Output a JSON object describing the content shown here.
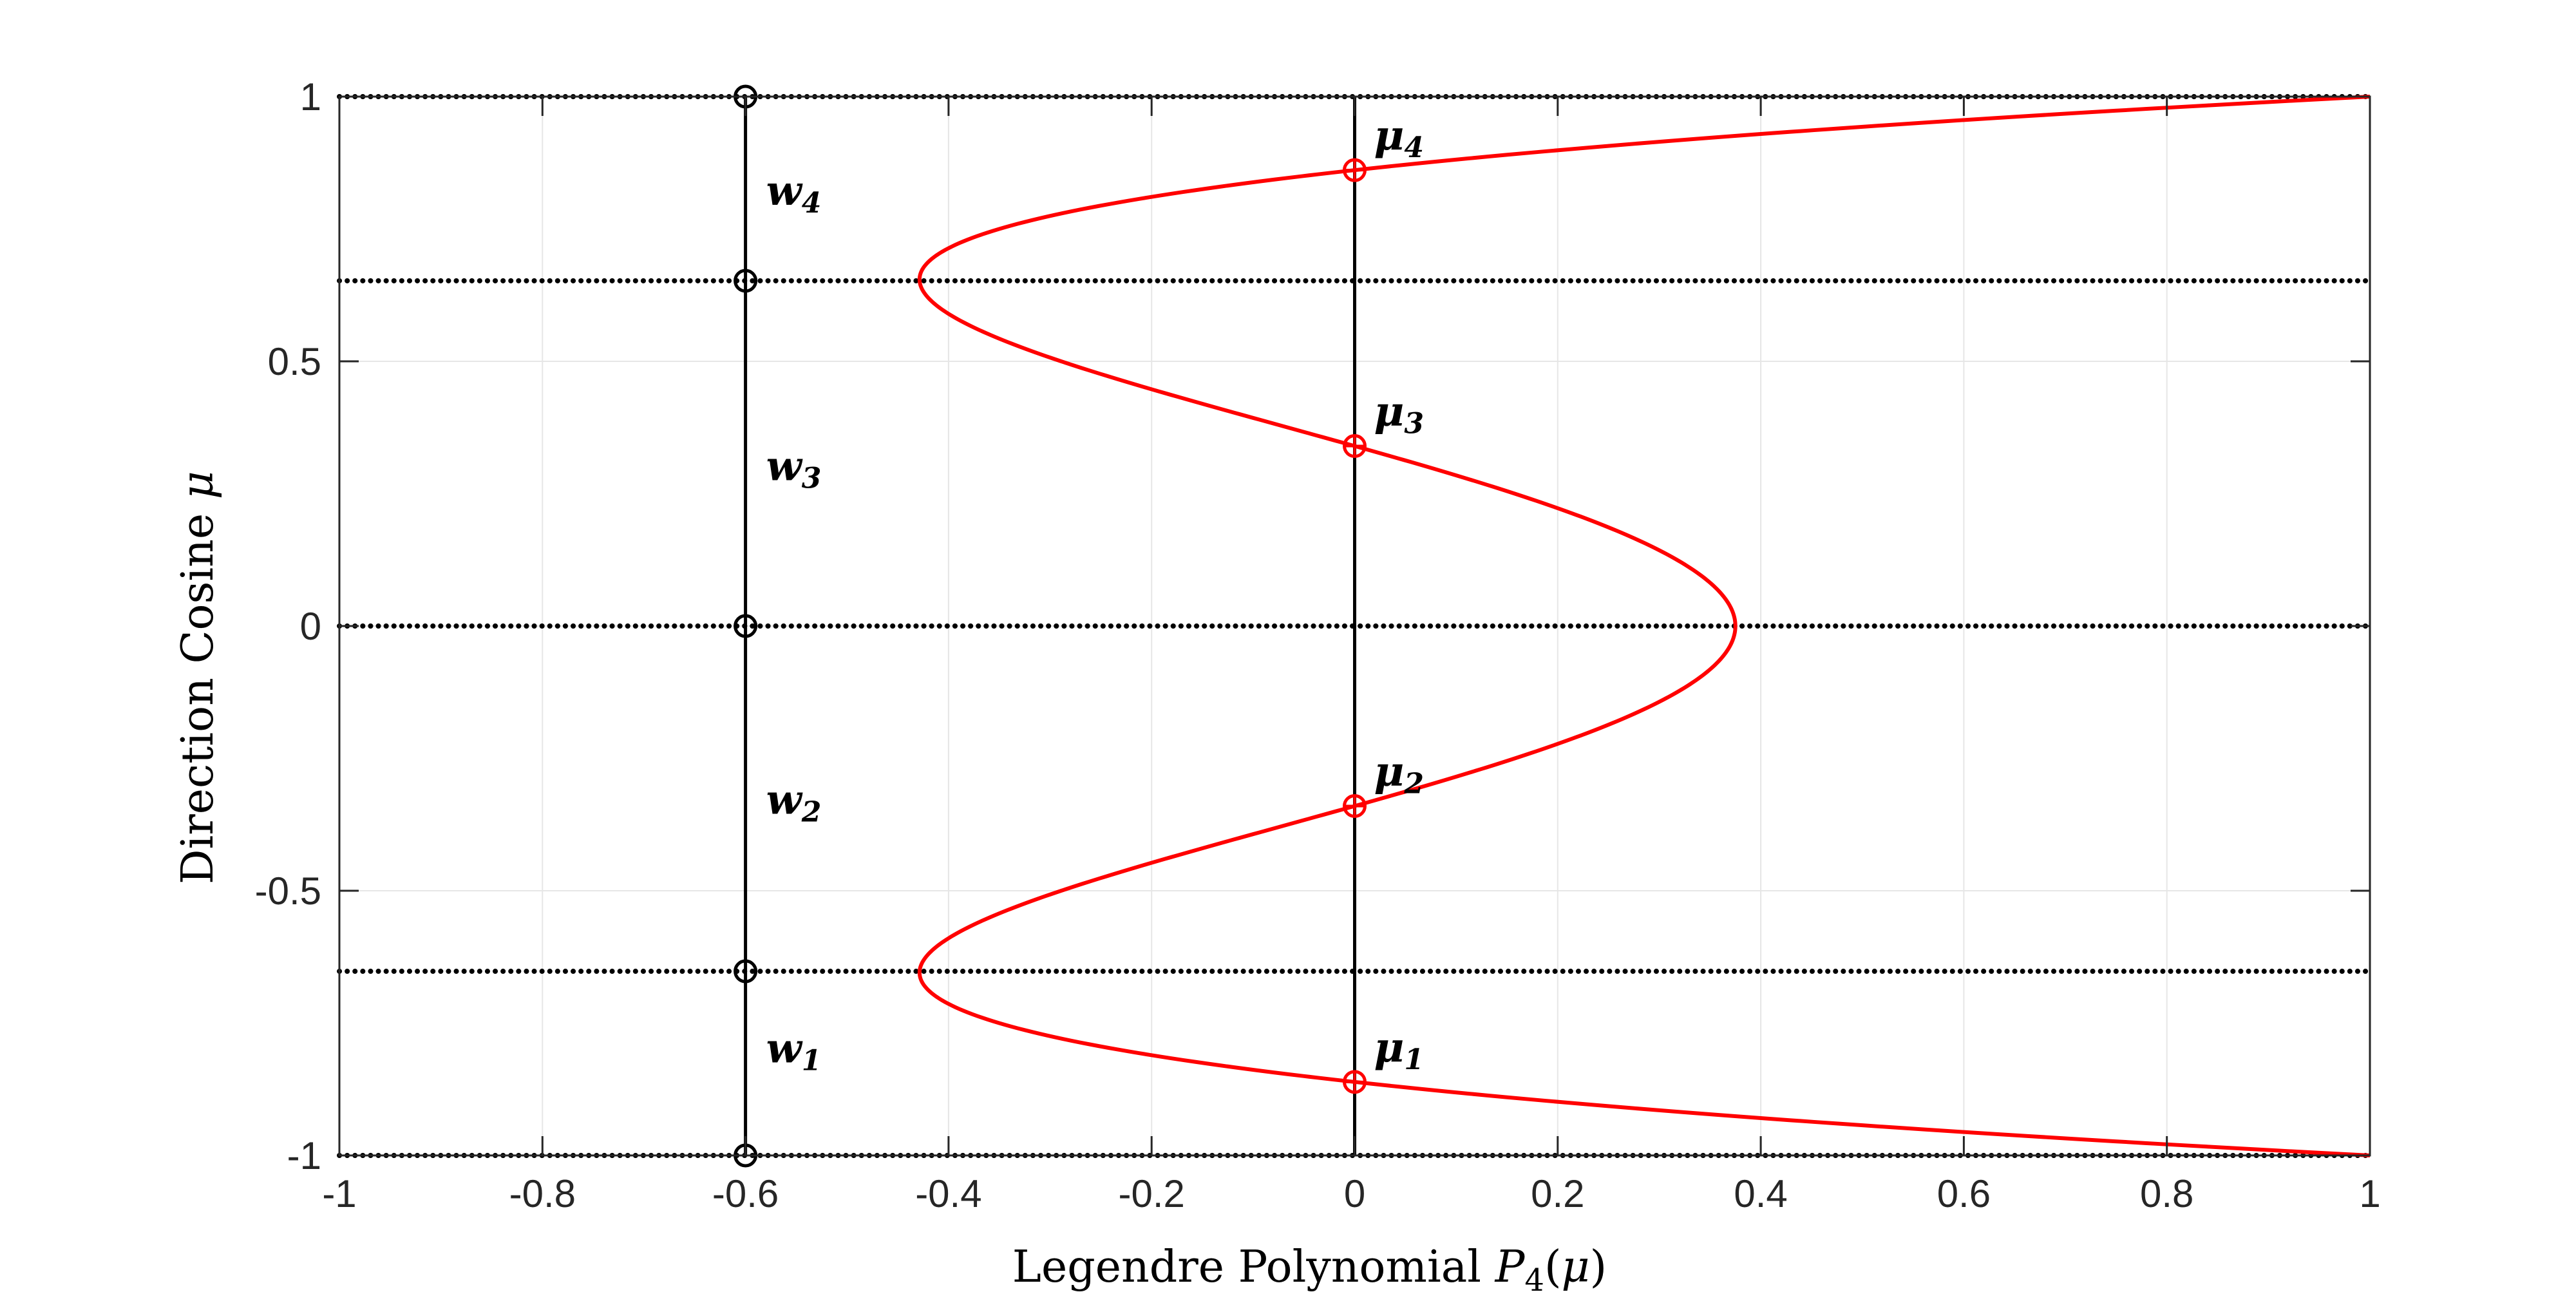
{
  "chart_data": {
    "type": "line",
    "title": "",
    "xlabel": "Legendre Polynomial P4(μ)",
    "xlabel_parts": [
      "Legendre Polynomial ",
      "P",
      "4",
      "(",
      "μ",
      ")"
    ],
    "ylabel": "Direction Cosine μ",
    "ylabel_parts": [
      "Direction Cosine ",
      "μ"
    ],
    "xlim": [
      -1,
      1
    ],
    "ylim": [
      -1,
      1
    ],
    "xticks": [
      -1,
      -0.8,
      -0.6,
      -0.4,
      -0.2,
      0,
      0.2,
      0.4,
      0.6,
      0.8,
      1
    ],
    "xtick_labels": [
      "-1",
      "-0.8",
      "-0.6",
      "-0.4",
      "-0.2",
      "0",
      "0.2",
      "0.4",
      "0.6",
      "0.8",
      "1"
    ],
    "yticks": [
      -1,
      -0.5,
      0,
      0.5,
      1
    ],
    "ytick_labels": [
      "-1",
      "-0.5",
      "0",
      "0.5",
      "1"
    ],
    "grid": true,
    "colors": {
      "curve": "#ff0000",
      "lines": "#000000",
      "grid": "#e6e6e6",
      "axes": "#262626"
    },
    "curve": {
      "function": "P4(mu) = (35 mu^4 - 30 mu^2 + 3) / 8",
      "mu_range": [
        -1,
        1
      ],
      "color": "#ff0000"
    },
    "horizontal_dotted_lines_at_mu": [
      -1,
      -0.6521,
      0,
      0.6521,
      1
    ],
    "vertical_lines_at_x": [
      -0.6,
      0
    ],
    "weight_boundary_markers": {
      "x": -0.6,
      "mu": [
        -1,
        -0.6521,
        0,
        0.6521,
        1
      ],
      "color": "#000000"
    },
    "roots": [
      {
        "label": "μ",
        "sub": "1",
        "x": 0,
        "mu": -0.8611
      },
      {
        "label": "μ",
        "sub": "2",
        "x": 0,
        "mu": -0.34
      },
      {
        "label": "μ",
        "sub": "3",
        "x": 0,
        "mu": 0.34
      },
      {
        "label": "μ",
        "sub": "4",
        "x": 0,
        "mu": 0.8611
      }
    ],
    "weight_labels": [
      {
        "label": "w",
        "sub": "1",
        "x": -0.6,
        "mu": -0.8
      },
      {
        "label": "w",
        "sub": "2",
        "x": -0.6,
        "mu": -0.33
      },
      {
        "label": "w",
        "sub": "3",
        "x": -0.6,
        "mu": 0.3
      },
      {
        "label": "w",
        "sub": "4",
        "x": -0.6,
        "mu": 0.82
      }
    ]
  }
}
